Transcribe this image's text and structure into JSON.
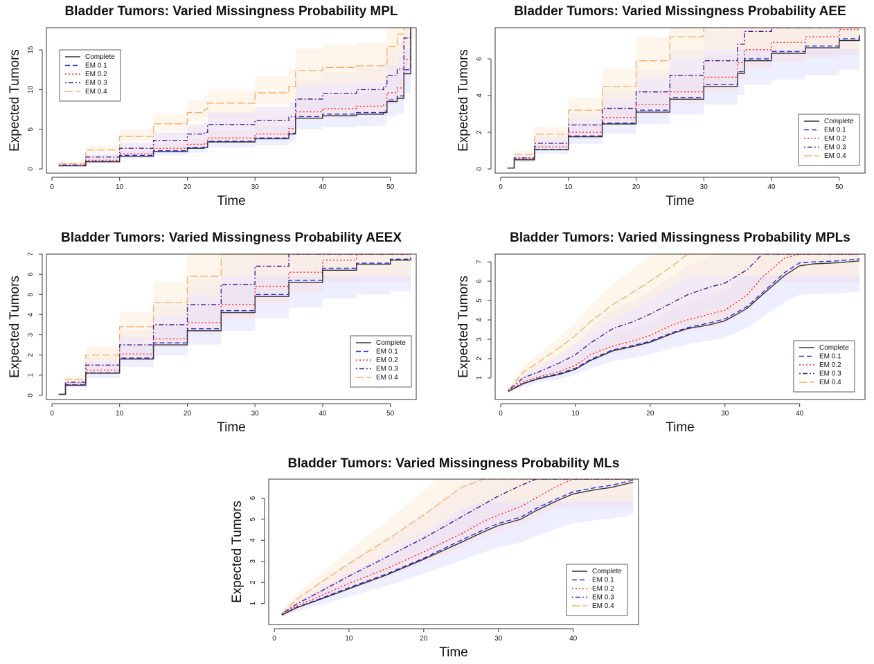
{
  "figure": {
    "background": "#ffffff"
  },
  "legend_entries": [
    "Complete",
    "EM 0.1",
    "EM 0.2",
    "EM 0.3",
    "EM 0.4"
  ],
  "series_style": {
    "Complete": {
      "color": "#333333",
      "dash": "none"
    },
    "EM 0.1": {
      "color": "#1f2fe0",
      "dash": "dashed"
    },
    "EM 0.2": {
      "color": "#ff2020",
      "dash": "dotted"
    },
    "EM 0.3": {
      "color": "#4b1a8c",
      "dash": "dotdash"
    },
    "EM 0.4": {
      "color": "#f5b070",
      "dash": "longdash"
    }
  },
  "band_colors": [
    "#e6e8fd",
    "#f6e2e8",
    "#ede3f2",
    "#fdf1e3"
  ],
  "chart_data": [
    {
      "type": "line",
      "step": true,
      "title": "Bladder Tumors: Varied Missingness Probability MPL",
      "xlabel": "Time",
      "ylabel": "Expected Tumors",
      "xlim": [
        0,
        53
      ],
      "ylim": [
        0,
        17.8
      ],
      "xticks": [
        0,
        10,
        20,
        30,
        40,
        50
      ],
      "yticks": [
        0,
        5,
        10,
        15
      ],
      "legend_position": "top-left",
      "x": [
        1,
        5,
        10,
        15,
        20,
        22.5,
        23,
        30,
        35,
        36,
        40,
        45,
        49,
        49.5,
        51,
        52,
        53
      ],
      "series": [
        {
          "name": "Complete",
          "values": [
            0.4,
            0.9,
            1.6,
            2.2,
            2.6,
            2.7,
            3.4,
            3.8,
            4.4,
            6.4,
            6.7,
            6.9,
            7.1,
            8.5,
            8.9,
            12.0,
            17.8
          ]
        },
        {
          "name": "EM 0.1",
          "values": [
            0.4,
            0.95,
            1.7,
            2.3,
            2.7,
            2.8,
            3.5,
            3.9,
            4.5,
            6.6,
            6.9,
            7.1,
            7.3,
            8.7,
            9.2,
            12.5,
            17.8
          ]
        },
        {
          "name": "EM 0.2",
          "values": [
            0.45,
            1.1,
            1.9,
            2.6,
            3.1,
            3.2,
            3.9,
            4.4,
            5.1,
            7.2,
            7.6,
            7.9,
            8.1,
            9.6,
            10.2,
            13.8,
            17.8
          ]
        },
        {
          "name": "EM 0.3",
          "values": [
            0.5,
            1.5,
            2.6,
            3.6,
            4.4,
            4.6,
            5.6,
            6.1,
            6.6,
            8.8,
            9.5,
            10.0,
            10.4,
            11.8,
            12.6,
            16.5,
            17.8
          ]
        },
        {
          "name": "EM 0.4",
          "values": [
            0.7,
            2.4,
            4.1,
            5.7,
            7.1,
            7.5,
            8.3,
            9.6,
            10.4,
            12.4,
            12.8,
            13.0,
            13.2,
            15.4,
            17.0,
            17.8,
            17.8
          ]
        }
      ]
    },
    {
      "type": "line",
      "step": true,
      "title": "Bladder Tumors: Varied Missingness Probability AEE",
      "xlabel": "Time",
      "ylabel": "Expected Tumors",
      "xlim": [
        0,
        53
      ],
      "ylim": [
        0,
        7.7
      ],
      "xticks": [
        0,
        10,
        20,
        30,
        40,
        50
      ],
      "yticks": [
        0,
        2,
        4,
        6
      ],
      "legend_position": "bottom-right",
      "x": [
        1,
        2,
        5,
        10,
        15,
        20,
        25,
        30,
        35,
        36,
        40,
        45,
        50,
        53
      ],
      "series": [
        {
          "name": "Complete",
          "values": [
            0.05,
            0.5,
            1.05,
            1.75,
            2.45,
            3.1,
            3.8,
            4.5,
            5.2,
            5.9,
            6.3,
            6.6,
            7.0,
            7.25
          ]
        },
        {
          "name": "EM 0.1",
          "values": [
            0.05,
            0.5,
            1.07,
            1.8,
            2.5,
            3.2,
            3.9,
            4.6,
            5.3,
            6.0,
            6.4,
            6.7,
            7.1,
            7.4
          ]
        },
        {
          "name": "EM 0.2",
          "values": [
            0.05,
            0.55,
            1.2,
            2.0,
            2.8,
            3.5,
            4.2,
            5.0,
            5.8,
            6.5,
            6.9,
            7.2,
            7.6,
            7.7
          ]
        },
        {
          "name": "EM 0.3",
          "values": [
            0.05,
            0.6,
            1.4,
            2.4,
            3.3,
            4.2,
            5.1,
            5.9,
            6.8,
            7.5,
            7.7,
            7.7,
            7.7,
            7.7
          ]
        },
        {
          "name": "EM 0.4",
          "values": [
            0.05,
            0.8,
            1.9,
            3.2,
            4.5,
            5.9,
            7.2,
            7.7,
            7.7,
            7.7,
            7.7,
            7.7,
            7.7,
            7.7
          ]
        }
      ]
    },
    {
      "type": "line",
      "step": true,
      "title": "Bladder Tumors: Varied Missingness Probability AEEX",
      "xlabel": "Time",
      "ylabel": "Expected Tumors",
      "xlim": [
        0,
        53
      ],
      "ylim": [
        0,
        7
      ],
      "xticks": [
        0,
        10,
        20,
        30,
        40,
        50
      ],
      "yticks": [
        0,
        1,
        2,
        3,
        4,
        5,
        6,
        7
      ],
      "legend_position": "bottom-right",
      "x": [
        1,
        2,
        5,
        10,
        15,
        20,
        25,
        30,
        35,
        40,
        45,
        50,
        53
      ],
      "series": [
        {
          "name": "Complete",
          "values": [
            0.05,
            0.5,
            1.1,
            1.8,
            2.5,
            3.2,
            4.1,
            4.9,
            5.6,
            6.2,
            6.5,
            6.7,
            6.8
          ]
        },
        {
          "name": "EM 0.1",
          "values": [
            0.05,
            0.52,
            1.12,
            1.85,
            2.6,
            3.3,
            4.2,
            5.0,
            5.7,
            6.3,
            6.55,
            6.75,
            6.85
          ]
        },
        {
          "name": "EM 0.2",
          "values": [
            0.05,
            0.55,
            1.25,
            2.05,
            2.8,
            3.6,
            4.5,
            5.4,
            6.1,
            6.7,
            7.0,
            7.0,
            7.0
          ]
        },
        {
          "name": "EM 0.3",
          "values": [
            0.05,
            0.65,
            1.5,
            2.5,
            3.5,
            4.5,
            5.5,
            6.4,
            7.0,
            7.0,
            7.0,
            7.0,
            7.0
          ]
        },
        {
          "name": "EM 0.4",
          "values": [
            0.05,
            0.8,
            2.0,
            3.4,
            4.6,
            5.9,
            7.0,
            7.0,
            7.0,
            7.0,
            7.0,
            7.0,
            7.0
          ]
        }
      ]
    },
    {
      "type": "line",
      "step": false,
      "title": "Bladder Tumors: Varied Missingness Probability MPLs",
      "xlabel": "Time",
      "ylabel": "Expected Tumors",
      "xlim": [
        0,
        48
      ],
      "ylim": [
        0.1,
        7.4
      ],
      "xticks": [
        0,
        10,
        20,
        30,
        40
      ],
      "yticks": [
        1,
        2,
        3,
        4,
        5,
        6,
        7
      ],
      "legend_position": "bottom-right",
      "x": [
        1,
        3,
        5,
        8,
        10,
        12,
        15,
        18,
        20,
        23,
        25,
        28,
        30,
        33,
        35,
        38,
        40,
        42,
        45,
        48
      ],
      "series": [
        {
          "name": "Complete",
          "values": [
            0.3,
            0.7,
            0.95,
            1.2,
            1.45,
            1.9,
            2.4,
            2.65,
            2.85,
            3.3,
            3.55,
            3.75,
            3.95,
            4.6,
            5.3,
            6.3,
            6.8,
            6.9,
            6.95,
            7.05
          ]
        },
        {
          "name": "EM 0.1",
          "values": [
            0.3,
            0.72,
            0.98,
            1.25,
            1.5,
            1.95,
            2.45,
            2.7,
            2.9,
            3.35,
            3.6,
            3.85,
            4.05,
            4.7,
            5.4,
            6.45,
            6.95,
            7.0,
            7.05,
            7.15
          ]
        },
        {
          "name": "EM 0.2",
          "values": [
            0.32,
            0.8,
            1.05,
            1.35,
            1.65,
            2.2,
            2.65,
            2.95,
            3.2,
            3.75,
            4.0,
            4.3,
            4.5,
            5.3,
            6.2,
            7.2,
            7.4,
            7.4,
            7.4,
            7.4
          ]
        },
        {
          "name": "EM 0.3",
          "values": [
            0.35,
            1.0,
            1.3,
            1.8,
            2.2,
            2.8,
            3.55,
            3.95,
            4.3,
            4.9,
            5.3,
            5.7,
            5.9,
            6.6,
            7.4,
            7.4,
            7.4,
            7.4,
            7.4,
            7.4
          ]
        },
        {
          "name": "EM 0.4",
          "values": [
            0.35,
            1.3,
            1.8,
            2.6,
            3.2,
            3.9,
            4.8,
            5.5,
            6.0,
            6.8,
            7.4,
            7.4,
            7.4,
            7.4,
            7.4,
            7.4,
            7.4,
            7.4,
            7.4,
            7.4
          ]
        }
      ]
    },
    {
      "type": "line",
      "step": false,
      "title": "Bladder Tumors: Varied Missingness Probability MLs",
      "xlabel": "Time",
      "ylabel": "Expected Tumors",
      "xlim": [
        0,
        48
      ],
      "ylim": [
        0.2,
        6.9
      ],
      "xticks": [
        0,
        10,
        20,
        30,
        40
      ],
      "yticks": [
        1,
        2,
        3,
        4,
        5,
        6
      ],
      "legend_position": "bottom-right",
      "x": [
        1,
        3,
        5,
        10,
        15,
        20,
        25,
        28,
        30,
        33,
        35,
        38,
        40,
        43,
        45,
        48
      ],
      "series": [
        {
          "name": "Complete",
          "values": [
            0.45,
            0.8,
            1.05,
            1.7,
            2.35,
            3.1,
            3.9,
            4.4,
            4.7,
            5.0,
            5.4,
            5.9,
            6.2,
            6.4,
            6.5,
            6.75
          ]
        },
        {
          "name": "EM 0.1",
          "values": [
            0.45,
            0.82,
            1.08,
            1.75,
            2.4,
            3.15,
            4.0,
            4.5,
            4.8,
            5.1,
            5.5,
            6.0,
            6.3,
            6.5,
            6.6,
            6.85
          ]
        },
        {
          "name": "EM 0.2",
          "values": [
            0.45,
            0.88,
            1.18,
            1.95,
            2.65,
            3.45,
            4.3,
            4.9,
            5.2,
            5.6,
            6.0,
            6.6,
            6.9,
            6.9,
            6.9,
            6.9
          ]
        },
        {
          "name": "EM 0.3",
          "values": [
            0.5,
            0.98,
            1.35,
            2.3,
            3.2,
            4.1,
            5.1,
            5.7,
            6.1,
            6.6,
            6.9,
            6.9,
            6.9,
            6.9,
            6.9,
            6.9
          ]
        },
        {
          "name": "EM 0.4",
          "values": [
            0.5,
            1.2,
            1.7,
            2.9,
            4.0,
            5.2,
            6.5,
            6.9,
            6.9,
            6.9,
            6.9,
            6.9,
            6.9,
            6.9,
            6.9,
            6.9
          ]
        }
      ]
    }
  ]
}
